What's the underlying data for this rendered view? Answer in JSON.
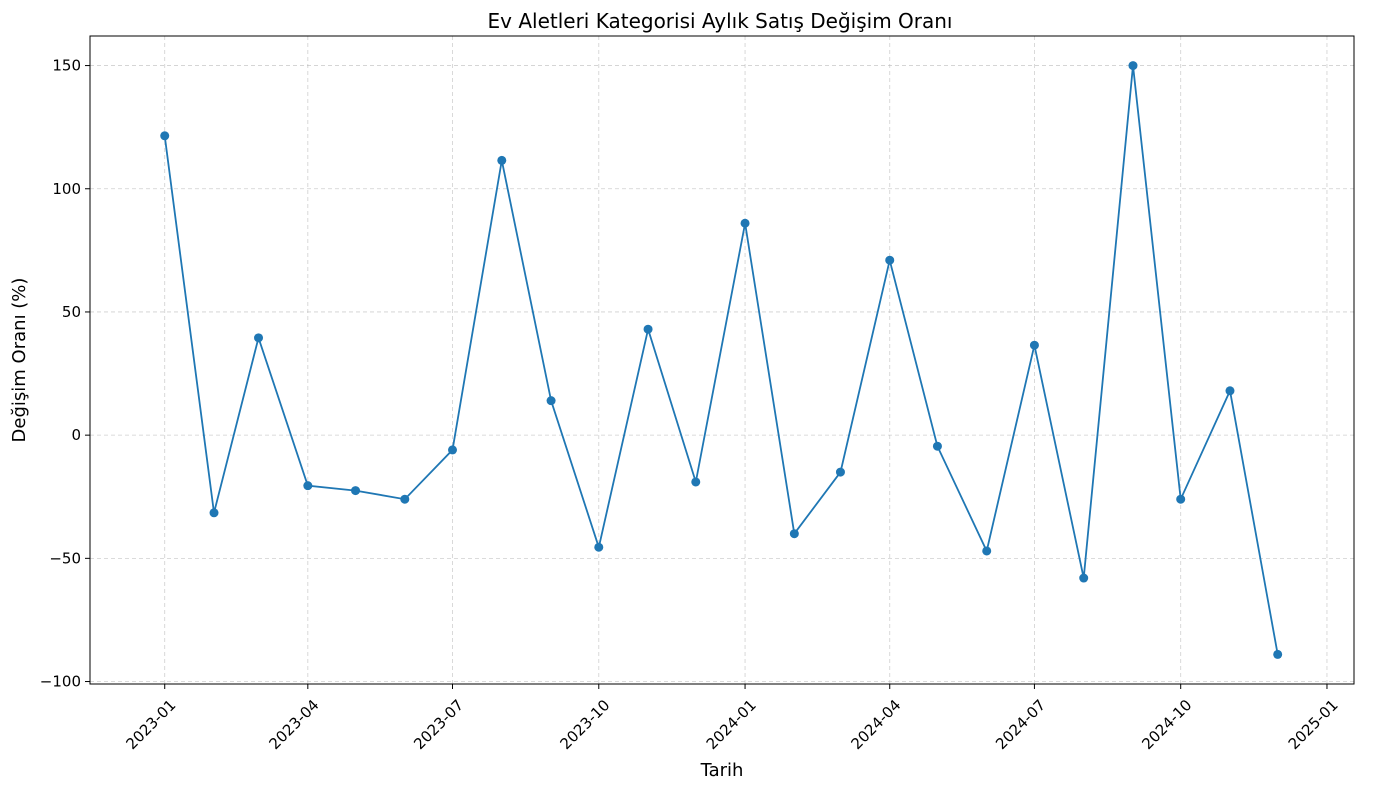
{
  "chart_data": {
    "type": "line",
    "title": "Ev Aletleri Kategorisi Aylık Satış Değişim Oranı",
    "xlabel": "Tarih",
    "ylabel": "Değişim Oranı (%)",
    "x_ticks": [
      "2023-01",
      "2023-04",
      "2023-07",
      "2023-10",
      "2024-01",
      "2024-04",
      "2024-07",
      "2024-10",
      "2025-01"
    ],
    "y_ticks": [
      -100,
      -50,
      0,
      50,
      100,
      150
    ],
    "y_tick_labels": [
      "−100",
      "−50",
      "0",
      "50",
      "100",
      "150"
    ],
    "ylim": [
      -101,
      162
    ],
    "xlim": [
      "2022-11-15",
      "2025-01-18"
    ],
    "grid": true,
    "series_color": "#1f77b4",
    "x": [
      "2023-01-01",
      "2023-02-01",
      "2023-03-01",
      "2023-04-01",
      "2023-05-01",
      "2023-06-01",
      "2023-07-01",
      "2023-08-01",
      "2023-09-01",
      "2023-10-01",
      "2023-11-01",
      "2023-12-01",
      "2024-01-01",
      "2024-02-01",
      "2024-03-01",
      "2024-04-01",
      "2024-05-01",
      "2024-06-01",
      "2024-07-01",
      "2024-08-01",
      "2024-09-01",
      "2024-10-01",
      "2024-11-01",
      "2024-12-01"
    ],
    "values": [
      121.5,
      -31.5,
      39.5,
      -20.5,
      -22.5,
      -26,
      -6,
      111.5,
      14,
      -45.5,
      43,
      -19,
      86,
      -40,
      -15,
      71,
      -4.5,
      -47,
      36.5,
      -58,
      150,
      -26,
      18,
      -89
    ]
  }
}
